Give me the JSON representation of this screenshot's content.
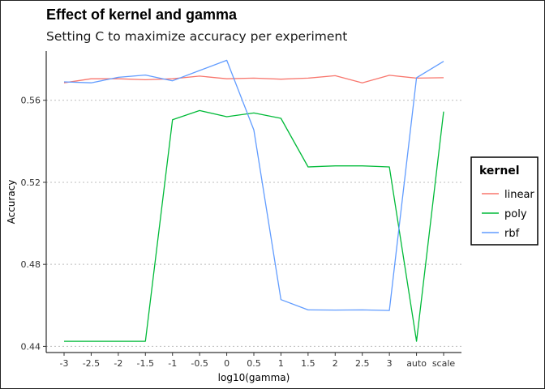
{
  "chart_data": {
    "type": "line",
    "title": "Effect of kernel and gamma",
    "subtitle": "Setting C to maximize accuracy per experiment",
    "xlabel": "log10(gamma)",
    "ylabel": "Accuracy",
    "categories": [
      "-3",
      "-2.5",
      "-2",
      "-1.5",
      "-1",
      "-0.5",
      "0",
      "0.5",
      "1",
      "1.5",
      "2",
      "2.5",
      "3",
      "auto",
      "scale"
    ],
    "ylim": [
      0.437,
      0.584
    ],
    "yticks": [
      "0.44",
      "0.48",
      "0.52",
      "0.56"
    ],
    "grid": "horizontal dotted",
    "legend": {
      "title": "kernel",
      "position": "right"
    },
    "series": [
      {
        "name": "linear",
        "color": "#F8766D",
        "values": [
          0.5685,
          0.5705,
          0.5705,
          0.57,
          0.5705,
          0.5718,
          0.5705,
          0.5708,
          0.5703,
          0.5708,
          0.572,
          0.5685,
          0.5722,
          0.5708,
          0.571
        ]
      },
      {
        "name": "poly",
        "color": "#00BA38",
        "values": [
          0.4425,
          0.4425,
          0.4425,
          0.4425,
          0.5505,
          0.555,
          0.552,
          0.5538,
          0.5512,
          0.5275,
          0.528,
          0.528,
          0.5275,
          0.4425,
          0.5545
        ]
      },
      {
        "name": "rbf",
        "color": "#619CFF",
        "values": [
          0.569,
          0.5685,
          0.5712,
          0.5723,
          0.5695,
          0.5745,
          0.5795,
          0.5455,
          0.4628,
          0.4578,
          0.4577,
          0.4578,
          0.4575,
          0.571,
          0.579
        ]
      }
    ]
  }
}
